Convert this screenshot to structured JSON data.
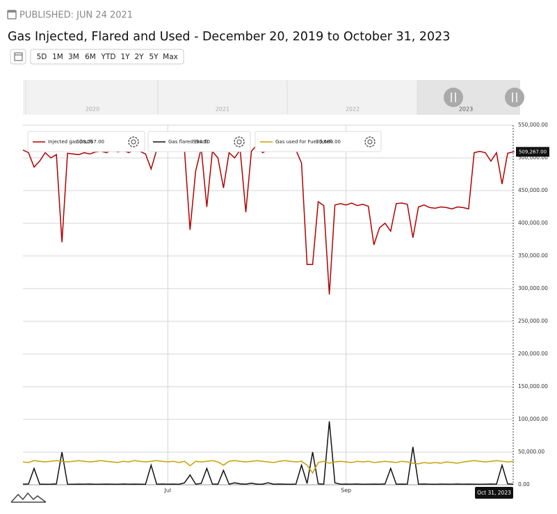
{
  "published": "PUBLISHED: JUN 24 2021",
  "range_buttons": [
    "5D",
    "1M",
    "3M",
    "6M",
    "YTD",
    "1Y",
    "2Y",
    "5Y",
    "Max"
  ],
  "navigator_years": [
    "2020",
    "2021",
    "2022",
    "2023"
  ],
  "chart_data": {
    "type": "line",
    "title": "Gas Injected, Flared and Used - December 20, 2019 to October 31, 2023",
    "cursor_label": "Oct 31, 2023",
    "categories": [
      null,
      null,
      null,
      null,
      null,
      null,
      null,
      null,
      null,
      null,
      null,
      null,
      null,
      null,
      null,
      null,
      null,
      null,
      null,
      null,
      null,
      null,
      null,
      null,
      null,
      null,
      "Jul",
      null,
      null,
      null,
      null,
      null,
      null,
      null,
      null,
      null,
      null,
      null,
      null,
      null,
      null,
      null,
      null,
      null,
      null,
      null,
      null,
      null,
      null,
      null,
      null,
      null,
      null,
      null,
      null,
      null,
      null,
      null,
      "Sep",
      null,
      null,
      null,
      null,
      null,
      null,
      null,
      null,
      null,
      null,
      null,
      null,
      null,
      null,
      null,
      null,
      null,
      null,
      null,
      null,
      null,
      null,
      null,
      null,
      null,
      null,
      null,
      null,
      null,
      null
    ],
    "ylim": [
      0,
      550000
    ],
    "yticks": [
      {
        "value": 0,
        "label": "0.00"
      },
      {
        "value": 50000,
        "label": "50,000.00"
      },
      {
        "value": 100000,
        "label": "100,000.00"
      },
      {
        "value": 150000,
        "label": "150,000.00"
      },
      {
        "value": 200000,
        "label": "200,000.00"
      },
      {
        "value": 250000,
        "label": "250,000.00"
      },
      {
        "value": 300000,
        "label": "300,000.00"
      },
      {
        "value": 350000,
        "label": "350,000.00"
      },
      {
        "value": 400000,
        "label": "400,000.00"
      },
      {
        "value": 450000,
        "label": "450,000.00"
      },
      {
        "value": 500000,
        "label": "500,000.00"
      },
      {
        "value": 550000,
        "label": "550,000.00"
      }
    ],
    "grid": true,
    "series": [
      {
        "name": "Injected gas (kscf)",
        "color": "#b00000",
        "legend_value": "509,267.00",
        "values": [
          512000,
          508000,
          486000,
          495000,
          508000,
          500000,
          505000,
          371000,
          507000,
          506000,
          505000,
          508000,
          506000,
          509000,
          510000,
          508000,
          512000,
          509000,
          511000,
          508000,
          512000,
          510000,
          506000,
          483000,
          512000,
          525000,
          522000,
          520000,
          518000,
          512000,
          390000,
          480000,
          515000,
          425000,
          510000,
          500000,
          454000,
          508000,
          500000,
          512000,
          417000,
          510000,
          520000,
          508000,
          512000,
          515000,
          518000,
          516000,
          514000,
          512000,
          492000,
          337000,
          337000,
          433000,
          427000,
          291000,
          428000,
          430000,
          428000,
          431000,
          427000,
          429000,
          426000,
          367000,
          393000,
          400000,
          388000,
          430000,
          431000,
          429000,
          378000,
          425000,
          428000,
          424000,
          423000,
          425000,
          424000,
          422000,
          425000,
          424000,
          422000,
          508000,
          510000,
          508000,
          495000,
          508000,
          460000,
          507000,
          509267
        ]
      },
      {
        "name": "Gas flared (kscf)",
        "color": "#111111",
        "legend_value": "994.00",
        "values": [
          1000,
          1200,
          25000,
          1100,
          900,
          1000,
          1300,
          50000,
          1000,
          900,
          1100,
          1000,
          1200,
          900,
          1000,
          1100,
          1000,
          900,
          1200,
          1000,
          1100,
          1000,
          900,
          30000,
          1000,
          1200,
          1000,
          1100,
          900,
          3000,
          15000,
          1000,
          2000,
          25000,
          1200,
          1000,
          22000,
          1000,
          3000,
          1500,
          1000,
          2500,
          1000,
          1000,
          3000,
          1000,
          1200,
          1000,
          900,
          1100,
          30000,
          2000,
          50000,
          1500,
          1000,
          97000,
          3000,
          1000,
          1100,
          1000,
          1200,
          900,
          1000,
          1100,
          1000,
          1300,
          25000,
          1000,
          1100,
          1000,
          58000,
          1000,
          1200,
          1000,
          900,
          1100,
          1000,
          1000,
          1200,
          1000,
          1100,
          1000,
          900,
          1000,
          1200,
          1000,
          30000,
          1500,
          994
        ]
      },
      {
        "name": "Gas used for Fuel (kscf)",
        "color": "#c8a000",
        "legend_value": "35,684.00",
        "values": [
          35000,
          34000,
          37000,
          36000,
          35000,
          36000,
          37000,
          36000,
          35000,
          36000,
          37000,
          36000,
          35000,
          36000,
          37000,
          36000,
          35000,
          34000,
          36000,
          35000,
          37000,
          36000,
          35000,
          36000,
          37000,
          36000,
          35000,
          36000,
          34000,
          36000,
          29000,
          36000,
          35000,
          36000,
          37000,
          35000,
          30000,
          36000,
          37000,
          36000,
          35000,
          36000,
          37000,
          36000,
          35000,
          34000,
          36000,
          37000,
          36000,
          35000,
          36000,
          30000,
          18000,
          34000,
          36000,
          33000,
          35000,
          36000,
          35000,
          34000,
          36000,
          35000,
          36000,
          34000,
          35000,
          36000,
          35000,
          34000,
          36000,
          35000,
          33000,
          32000,
          34000,
          33000,
          34000,
          33000,
          35000,
          34000,
          33000,
          35000,
          36000,
          37000,
          36000,
          35000,
          36000,
          37000,
          36000,
          35000,
          35684
        ]
      }
    ]
  }
}
